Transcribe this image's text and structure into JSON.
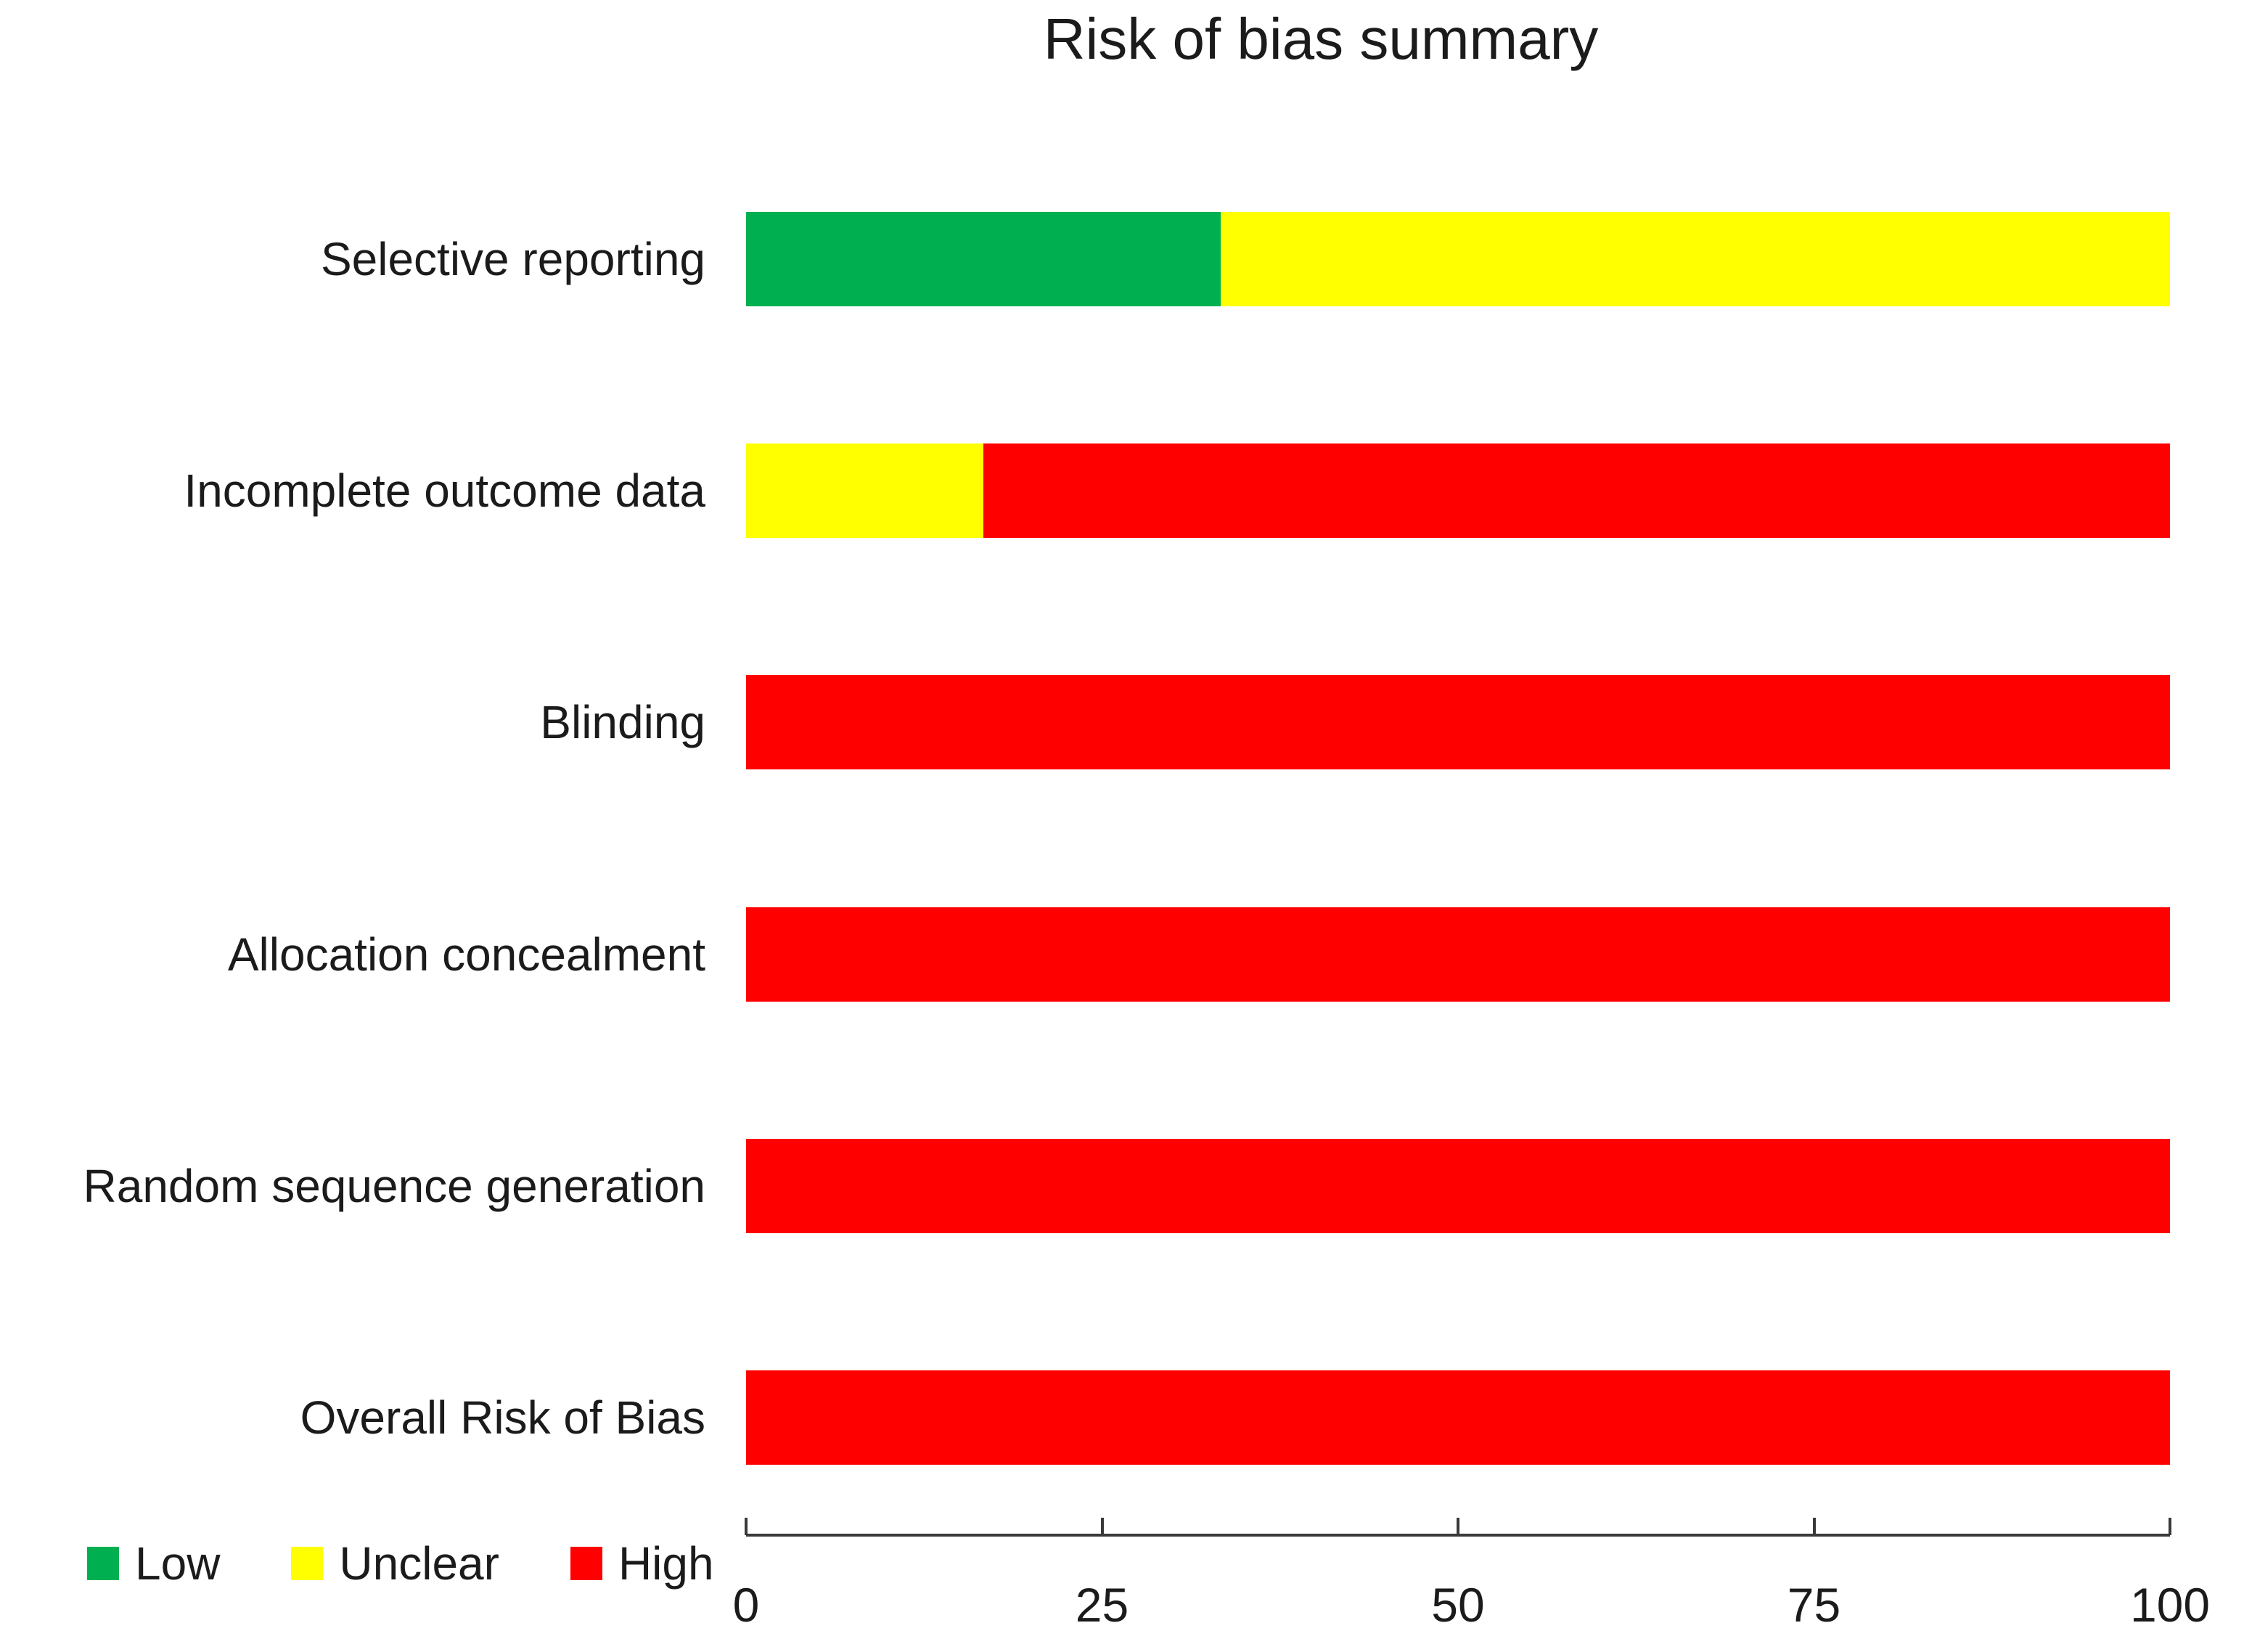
{
  "title": "Risk of bias summary",
  "colors": {
    "low": "#00B050",
    "unclear": "#FFFF00",
    "high": "#FF0000",
    "axis": "#3A3A3A",
    "text": "#1B1B1B"
  },
  "legend": {
    "position": "bottom-left",
    "items": [
      {
        "label": "Low",
        "key": "low"
      },
      {
        "label": "Unclear",
        "key": "unclear"
      },
      {
        "label": "High",
        "key": "high"
      }
    ]
  },
  "chart_data": {
    "type": "bar",
    "orientation": "horizontal",
    "stacked": true,
    "title": "Risk of bias summary",
    "categories": [
      "Selective reporting",
      "Incomplete outcome data",
      "Blinding",
      "Allocation concealment",
      "Random sequence generation",
      "Overall Risk of Bias"
    ],
    "series": [
      {
        "name": "Low",
        "color": "#00B050",
        "values": [
          33.33,
          0,
          0,
          0,
          0,
          0
        ]
      },
      {
        "name": "Unclear",
        "color": "#FFFF00",
        "values": [
          66.67,
          16.67,
          0,
          0,
          0,
          0
        ]
      },
      {
        "name": "High",
        "color": "#FF0000",
        "values": [
          0,
          83.33,
          100,
          100,
          100,
          100
        ]
      }
    ],
    "xlabel": "",
    "ylabel": "",
    "xlim": [
      0,
      100
    ],
    "x_ticks": [
      0,
      25,
      50,
      75,
      100
    ],
    "grid": false,
    "legend_position": "bottom-left"
  }
}
